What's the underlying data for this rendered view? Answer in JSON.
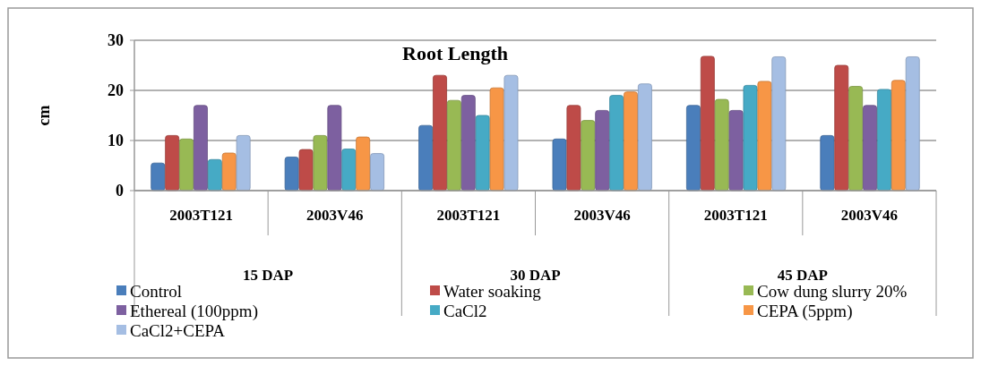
{
  "chart_data": {
    "type": "bar",
    "title": "Root Length",
    "ylabel": "cm",
    "categories": [
      "2003T121",
      "2003V46",
      "2003T121",
      "2003V46",
      "2003T121",
      "2003V46"
    ],
    "annotations": [
      "15 DAP",
      "30 DAP",
      "45 DAP"
    ],
    "ylim": [
      0,
      30
    ],
    "yticks": [
      0,
      10,
      20,
      30
    ],
    "grid": "y",
    "legend": "bottom",
    "series": [
      {
        "name": "Control",
        "color": "#4a7ebb",
        "values": [
          5.5,
          6.7,
          13,
          10.3,
          17,
          11
        ]
      },
      {
        "name": "Water soaking",
        "color": "#be4b48",
        "values": [
          11,
          8.2,
          23,
          17,
          26.8,
          25
        ]
      },
      {
        "name": "Cow dung slurry 20%",
        "color": "#98b954",
        "values": [
          10.3,
          11,
          18,
          14,
          18.2,
          20.8
        ]
      },
      {
        "name": "Ethereal (100ppm)",
        "color": "#7d60a0",
        "values": [
          17,
          17,
          19,
          16,
          16,
          17
        ]
      },
      {
        "name": "CaCl2",
        "color": "#46aac5",
        "values": [
          6.2,
          8.3,
          15,
          19,
          21,
          20.2
        ]
      },
      {
        "name": "CEPA (5ppm)",
        "color": "#f79646",
        "values": [
          7.5,
          10.7,
          20.5,
          19.7,
          21.8,
          22
        ]
      },
      {
        "name": "CaCl2+CEPA",
        "color": "#a5bee3",
        "values": [
          11,
          7.4,
          23,
          21.3,
          26.7,
          26.7
        ]
      }
    ]
  }
}
